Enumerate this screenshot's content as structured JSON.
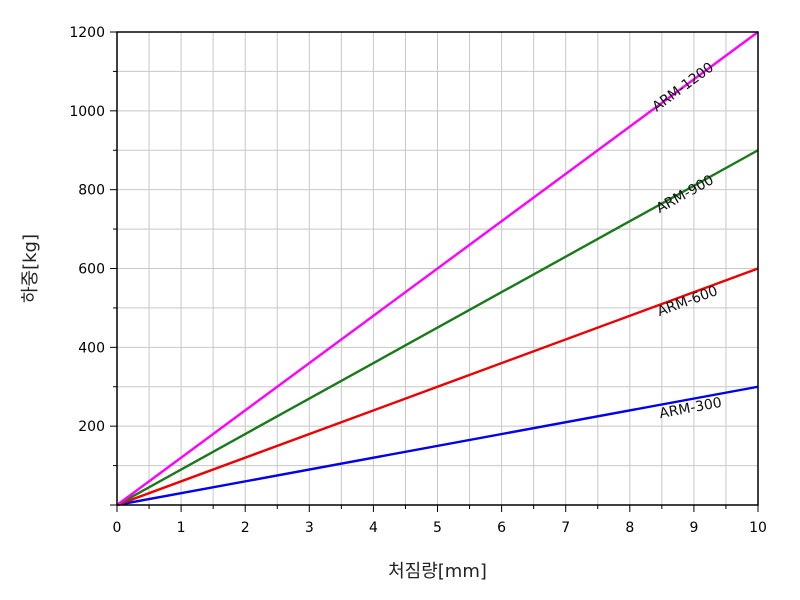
{
  "chart_data": {
    "type": "line",
    "xlabel": "처짐량[mm]",
    "ylabel": "하중[kg]",
    "xlim": [
      0,
      10
    ],
    "ylim": [
      0,
      1200
    ],
    "x_ticks": [
      0,
      1,
      2,
      3,
      4,
      5,
      6,
      7,
      8,
      9,
      10
    ],
    "y_ticks": [
      200,
      400,
      600,
      800,
      1000,
      1200
    ],
    "grid": true,
    "series": [
      {
        "name": "ARM-300",
        "color": "#0000ee",
        "x": [
          0,
          10
        ],
        "y": [
          0,
          300
        ]
      },
      {
        "name": "ARM-600",
        "color": "#ee0000",
        "x": [
          0,
          10
        ],
        "y": [
          0,
          600
        ]
      },
      {
        "name": "ARM-900",
        "color": "#1a7a1a",
        "x": [
          0,
          10
        ],
        "y": [
          0,
          900
        ]
      },
      {
        "name": "ARM-1200",
        "color": "#ff00ff",
        "x": [
          0,
          10
        ],
        "y": [
          0,
          1200
        ]
      }
    ]
  }
}
